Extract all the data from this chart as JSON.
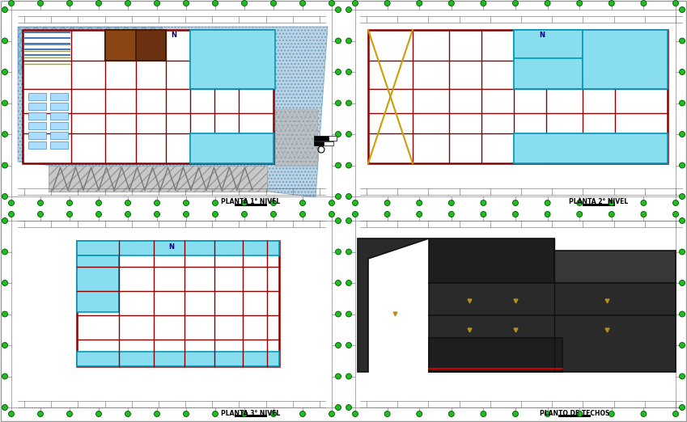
{
  "bg": "#ffffff",
  "green_fc": "#22bb22",
  "green_ec": "#005500",
  "dim_color": "#888888",
  "wall_dark": "#8b0000",
  "wall_red": "#cc2200",
  "cyan_fill": "#88ddee",
  "cyan_ec": "#0099bb",
  "blue_hatch_fc": "#aaccdd",
  "blue_hatch_ec": "#6699bb",
  "brown_fill": "#7b3a10",
  "gray_fill": "#aaaaaa",
  "gray_step": "#999999",
  "dark_roof": "#2a2a2a",
  "dark_roof2": "#1e1e1e",
  "dark_roof3": "#383838",
  "gold": "#b89020",
  "label_col": "#000000",
  "n_col": "#000080",
  "panel1_label": "PLANTA 1° NIVEL",
  "panel2_label": "PLANTA 2° NIVEL",
  "panel3_label": "PLANTA 3° NIVEL",
  "panel4_label": "PLANTO DE TECHOS",
  "p1_bldg": [
    60,
    130,
    280,
    140
  ],
  "p2_bldg": [
    460,
    80,
    330,
    145
  ],
  "p3_bldg": [
    95,
    60,
    250,
    145
  ],
  "p4_roof_base": [
    460,
    55,
    340,
    155
  ]
}
